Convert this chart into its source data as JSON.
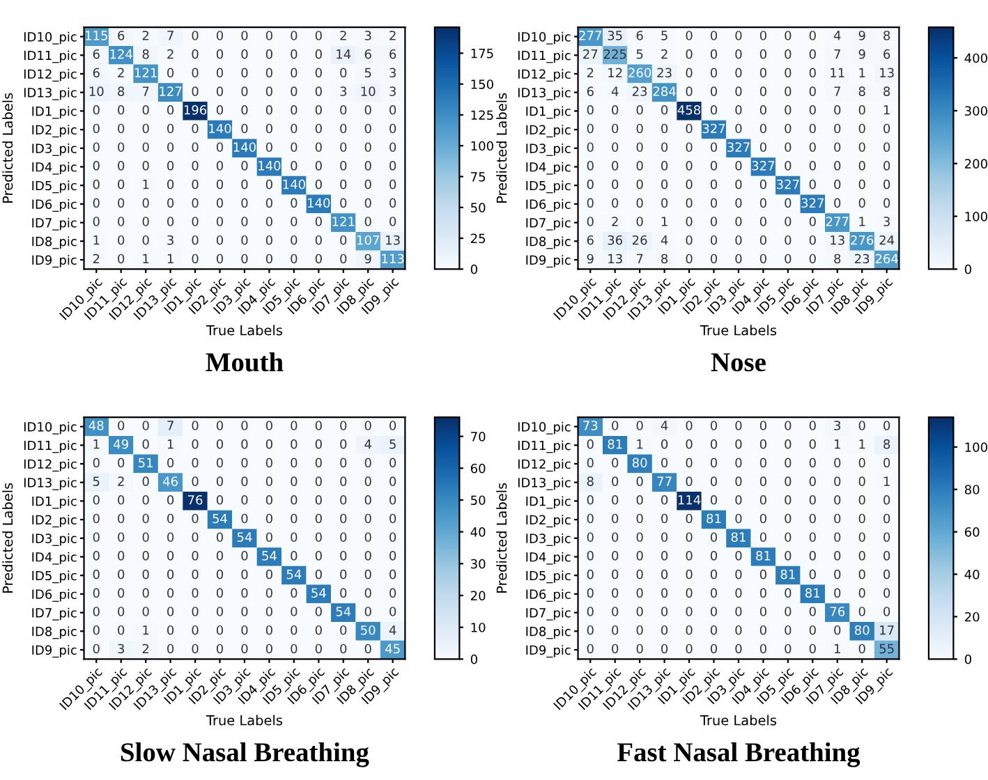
{
  "chart_data": [
    {
      "type": "heatmap",
      "title": "Mouth",
      "xlabel": "True Labels",
      "ylabel": "Predicted Labels",
      "data_labels": true,
      "categories": [
        "ID10_pic",
        "ID11_pic",
        "ID12_pic",
        "ID13_pic",
        "ID1_pic",
        "ID2_pic",
        "ID3_pic",
        "ID4_pic",
        "ID5_pic",
        "ID6_pic",
        "ID7_pic",
        "ID8_pic",
        "ID9_pic"
      ],
      "y_categories": [
        "ID10_pic",
        "ID11_pic",
        "ID12_pic",
        "ID13_pic",
        "ID1_pic",
        "ID2_pic",
        "ID3_pic",
        "ID4_pic",
        "ID5_pic",
        "ID6_pic",
        "ID7_pic",
        "ID8_pic",
        "ID9_pic"
      ],
      "cells": [
        [
          115,
          6,
          2,
          7,
          0,
          0,
          0,
          0,
          0,
          0,
          2,
          3,
          2
        ],
        [
          6,
          124,
          8,
          2,
          0,
          0,
          0,
          0,
          0,
          0,
          14,
          6,
          6
        ],
        [
          6,
          2,
          121,
          0,
          0,
          0,
          0,
          0,
          0,
          0,
          0,
          5,
          3
        ],
        [
          10,
          8,
          7,
          127,
          0,
          0,
          0,
          0,
          0,
          0,
          3,
          10,
          3
        ],
        [
          0,
          0,
          0,
          0,
          196,
          0,
          0,
          0,
          0,
          0,
          0,
          0,
          0
        ],
        [
          0,
          0,
          0,
          0,
          0,
          140,
          0,
          0,
          0,
          0,
          0,
          0,
          0
        ],
        [
          0,
          0,
          0,
          0,
          0,
          0,
          140,
          0,
          0,
          0,
          0,
          0,
          0
        ],
        [
          0,
          0,
          0,
          0,
          0,
          0,
          0,
          140,
          0,
          0,
          0,
          0,
          0
        ],
        [
          0,
          0,
          1,
          0,
          0,
          0,
          0,
          0,
          140,
          0,
          0,
          0,
          0
        ],
        [
          0,
          0,
          0,
          0,
          0,
          0,
          0,
          0,
          0,
          140,
          0,
          0,
          0
        ],
        [
          0,
          0,
          0,
          0,
          0,
          0,
          0,
          0,
          0,
          0,
          121,
          0,
          0
        ],
        [
          1,
          0,
          0,
          3,
          0,
          0,
          0,
          0,
          0,
          0,
          0,
          107,
          13
        ],
        [
          2,
          0,
          1,
          1,
          0,
          0,
          0,
          0,
          0,
          0,
          0,
          9,
          113
        ]
      ],
      "clim": [
        0,
        196
      ],
      "cticks": [
        0,
        25,
        50,
        75,
        100,
        125,
        150,
        175
      ]
    },
    {
      "type": "heatmap",
      "title": "Nose",
      "xlabel": "True Labels",
      "ylabel": "Predicted Labels",
      "data_labels": true,
      "categories": [
        "ID10_pic",
        "ID11_pic",
        "ID12_pic",
        "ID13_pic",
        "ID1_pic",
        "ID2_pic",
        "ID3_pic",
        "ID4_pic",
        "ID5_pic",
        "ID6_pic",
        "ID7_pic",
        "ID8_pic",
        "ID9_pic"
      ],
      "y_categories": [
        "ID10_pic",
        "ID11_pic",
        "ID12_pic",
        "ID13_pic",
        "ID1_pic",
        "ID2_pic",
        "ID3_pic",
        "ID4_pic",
        "ID5_pic",
        "ID6_pic",
        "ID7_pic",
        "ID8_pic",
        "ID9_pic"
      ],
      "cells": [
        [
          277,
          35,
          6,
          5,
          0,
          0,
          0,
          0,
          0,
          0,
          4,
          9,
          8
        ],
        [
          27,
          225,
          5,
          2,
          0,
          0,
          0,
          0,
          0,
          0,
          7,
          9,
          6
        ],
        [
          2,
          12,
          260,
          23,
          0,
          0,
          0,
          0,
          0,
          0,
          11,
          1,
          13
        ],
        [
          6,
          4,
          23,
          284,
          0,
          0,
          0,
          0,
          0,
          0,
          7,
          8,
          8
        ],
        [
          0,
          0,
          0,
          0,
          458,
          0,
          0,
          0,
          0,
          0,
          0,
          0,
          1
        ],
        [
          0,
          0,
          0,
          0,
          0,
          327,
          0,
          0,
          0,
          0,
          0,
          0,
          0
        ],
        [
          0,
          0,
          0,
          0,
          0,
          0,
          327,
          0,
          0,
          0,
          0,
          0,
          0
        ],
        [
          0,
          0,
          0,
          0,
          0,
          0,
          0,
          327,
          0,
          0,
          0,
          0,
          0
        ],
        [
          0,
          0,
          0,
          0,
          0,
          0,
          0,
          0,
          327,
          0,
          0,
          0,
          0
        ],
        [
          0,
          0,
          0,
          0,
          0,
          0,
          0,
          0,
          0,
          327,
          0,
          0,
          0
        ],
        [
          0,
          2,
          0,
          1,
          0,
          0,
          0,
          0,
          0,
          0,
          277,
          1,
          3
        ],
        [
          6,
          36,
          26,
          4,
          0,
          0,
          0,
          0,
          0,
          0,
          13,
          276,
          24
        ],
        [
          9,
          13,
          7,
          8,
          0,
          0,
          0,
          0,
          0,
          0,
          8,
          23,
          264
        ]
      ],
      "clim": [
        0,
        458
      ],
      "cticks": [
        0,
        100,
        200,
        300,
        400
      ]
    },
    {
      "type": "heatmap",
      "title": "Slow Nasal Breathing",
      "xlabel": "True Labels",
      "ylabel": "Predicted Labels",
      "data_labels": true,
      "categories": [
        "ID10_pic",
        "ID11_pic",
        "ID12_pic",
        "ID13_pic",
        "ID1_pic",
        "ID2_pic",
        "ID3_pic",
        "ID4_pic",
        "ID5_pic",
        "ID6_pic",
        "ID7_pic",
        "ID8_pic",
        "ID9_pic"
      ],
      "y_categories": [
        "ID10_pic",
        "ID11_pic",
        "ID12_pic",
        "ID13_pic",
        "ID1_pic",
        "ID2_pic",
        "ID3_pic",
        "ID4_pic",
        "ID5_pic",
        "ID6_pic",
        "ID7_pic",
        "ID8_pic",
        "ID9_pic"
      ],
      "cells": [
        [
          48,
          0,
          0,
          7,
          0,
          0,
          0,
          0,
          0,
          0,
          0,
          0,
          0
        ],
        [
          1,
          49,
          0,
          1,
          0,
          0,
          0,
          0,
          0,
          0,
          0,
          4,
          5
        ],
        [
          0,
          0,
          51,
          0,
          0,
          0,
          0,
          0,
          0,
          0,
          0,
          0,
          0
        ],
        [
          5,
          2,
          0,
          46,
          0,
          0,
          0,
          0,
          0,
          0,
          0,
          0,
          0
        ],
        [
          0,
          0,
          0,
          0,
          76,
          0,
          0,
          0,
          0,
          0,
          0,
          0,
          0
        ],
        [
          0,
          0,
          0,
          0,
          0,
          54,
          0,
          0,
          0,
          0,
          0,
          0,
          0
        ],
        [
          0,
          0,
          0,
          0,
          0,
          0,
          54,
          0,
          0,
          0,
          0,
          0,
          0
        ],
        [
          0,
          0,
          0,
          0,
          0,
          0,
          0,
          54,
          0,
          0,
          0,
          0,
          0
        ],
        [
          0,
          0,
          0,
          0,
          0,
          0,
          0,
          0,
          54,
          0,
          0,
          0,
          0
        ],
        [
          0,
          0,
          0,
          0,
          0,
          0,
          0,
          0,
          0,
          54,
          0,
          0,
          0
        ],
        [
          0,
          0,
          0,
          0,
          0,
          0,
          0,
          0,
          0,
          0,
          54,
          0,
          0
        ],
        [
          0,
          0,
          1,
          0,
          0,
          0,
          0,
          0,
          0,
          0,
          0,
          50,
          4
        ],
        [
          0,
          3,
          2,
          0,
          0,
          0,
          0,
          0,
          0,
          0,
          0,
          0,
          45
        ]
      ],
      "clim": [
        0,
        76
      ],
      "cticks": [
        0,
        10,
        20,
        30,
        40,
        50,
        60,
        70
      ]
    },
    {
      "type": "heatmap",
      "title": "Fast Nasal Breathing",
      "xlabel": "True Labels",
      "ylabel": "Predicted Labels",
      "data_labels": true,
      "categories": [
        "ID10_pic",
        "ID11_pic",
        "ID12_pic",
        "ID13_pic",
        "ID1_pic",
        "ID2_pic",
        "ID3_pic",
        "ID4_pic",
        "ID5_pic",
        "ID6_pic",
        "ID7_pic",
        "ID8_pic",
        "ID9_pic"
      ],
      "y_categories": [
        "ID10_pic",
        "ID11_pic",
        "ID12_pic",
        "ID13_pic",
        "ID1_pic",
        "ID2_pic",
        "ID3_pic",
        "ID4_pic",
        "ID5_pic",
        "ID6_pic",
        "ID7_pic",
        "ID8_pic",
        "ID9_pic"
      ],
      "cells": [
        [
          73,
          0,
          0,
          4,
          0,
          0,
          0,
          0,
          0,
          0,
          3,
          0,
          0
        ],
        [
          0,
          81,
          1,
          0,
          0,
          0,
          0,
          0,
          0,
          0,
          1,
          1,
          8
        ],
        [
          0,
          0,
          80,
          0,
          0,
          0,
          0,
          0,
          0,
          0,
          0,
          0,
          0
        ],
        [
          8,
          0,
          0,
          77,
          0,
          0,
          0,
          0,
          0,
          0,
          0,
          0,
          1
        ],
        [
          0,
          0,
          0,
          0,
          114,
          0,
          0,
          0,
          0,
          0,
          0,
          0,
          0
        ],
        [
          0,
          0,
          0,
          0,
          0,
          81,
          0,
          0,
          0,
          0,
          0,
          0,
          0
        ],
        [
          0,
          0,
          0,
          0,
          0,
          0,
          81,
          0,
          0,
          0,
          0,
          0,
          0
        ],
        [
          0,
          0,
          0,
          0,
          0,
          0,
          0,
          81,
          0,
          0,
          0,
          0,
          0
        ],
        [
          0,
          0,
          0,
          0,
          0,
          0,
          0,
          0,
          81,
          0,
          0,
          0,
          0
        ],
        [
          0,
          0,
          0,
          0,
          0,
          0,
          0,
          0,
          0,
          81,
          0,
          0,
          0
        ],
        [
          0,
          0,
          0,
          0,
          0,
          0,
          0,
          0,
          0,
          0,
          76,
          0,
          0
        ],
        [
          0,
          0,
          0,
          0,
          0,
          0,
          0,
          0,
          0,
          0,
          0,
          80,
          17
        ],
        [
          0,
          0,
          0,
          0,
          0,
          0,
          0,
          0,
          0,
          0,
          1,
          0,
          55
        ]
      ],
      "clim": [
        0,
        114
      ],
      "cticks": [
        0,
        20,
        40,
        60,
        80,
        100
      ]
    }
  ]
}
